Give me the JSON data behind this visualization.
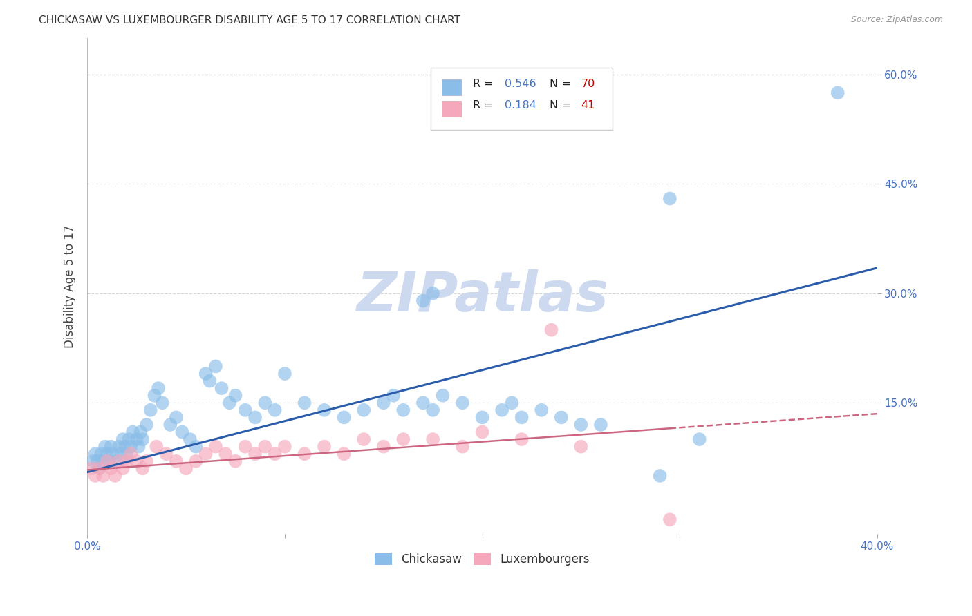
{
  "title": "CHICKASAW VS LUXEMBOURGER DISABILITY AGE 5 TO 17 CORRELATION CHART",
  "source": "Source: ZipAtlas.com",
  "ylabel": "Disability Age 5 to 17",
  "xlim": [
    0.0,
    0.4
  ],
  "ylim": [
    -0.03,
    0.65
  ],
  "xticks": [
    0.0,
    0.1,
    0.2,
    0.3,
    0.4
  ],
  "xticklabels": [
    "0.0%",
    "",
    "",
    "",
    "40.0%"
  ],
  "yticks": [
    0.15,
    0.3,
    0.45,
    0.6
  ],
  "yticklabels": [
    "15.0%",
    "30.0%",
    "45.0%",
    "60.0%"
  ],
  "chickasaw_color": "#8abde8",
  "luxembourger_color": "#f5a8bb",
  "trend_chickasaw_color": "#2a5caa",
  "trend_luxembourger_color": "#cc6680",
  "watermark_color": "#ccd9ee",
  "r_value_color": "#4472c4",
  "n_value_color": "#cc0000",
  "background_color": "#ffffff",
  "grid_color": "#cccccc",
  "legend_box_color": "#f0f0f0",
  "legend_box_edge": "#cccccc",
  "tick_color": "#4472c4",
  "title_color": "#333333",
  "source_color": "#999999",
  "ylabel_color": "#444444",
  "chickasaw_x": [
    0.003,
    0.004,
    0.005,
    0.006,
    0.007,
    0.008,
    0.009,
    0.01,
    0.011,
    0.012,
    0.013,
    0.015,
    0.016,
    0.017,
    0.018,
    0.019,
    0.02,
    0.021,
    0.022,
    0.023,
    0.025,
    0.026,
    0.027,
    0.028,
    0.03,
    0.032,
    0.034,
    0.036,
    0.038,
    0.042,
    0.045,
    0.048,
    0.052,
    0.055,
    0.06,
    0.062,
    0.065,
    0.068,
    0.072,
    0.075,
    0.08,
    0.085,
    0.09,
    0.095,
    0.1,
    0.11,
    0.12,
    0.13,
    0.14,
    0.15,
    0.155,
    0.16,
    0.17,
    0.175,
    0.18,
    0.19,
    0.2,
    0.21,
    0.215,
    0.22,
    0.23,
    0.24,
    0.25,
    0.26,
    0.29,
    0.31,
    0.17,
    0.175,
    0.38,
    0.295
  ],
  "chickasaw_y": [
    0.07,
    0.08,
    0.07,
    0.06,
    0.08,
    0.07,
    0.09,
    0.08,
    0.07,
    0.09,
    0.08,
    0.07,
    0.09,
    0.08,
    0.1,
    0.09,
    0.08,
    0.1,
    0.09,
    0.11,
    0.1,
    0.09,
    0.11,
    0.1,
    0.12,
    0.14,
    0.16,
    0.17,
    0.15,
    0.12,
    0.13,
    0.11,
    0.1,
    0.09,
    0.19,
    0.18,
    0.2,
    0.17,
    0.15,
    0.16,
    0.14,
    0.13,
    0.15,
    0.14,
    0.19,
    0.15,
    0.14,
    0.13,
    0.14,
    0.15,
    0.16,
    0.14,
    0.15,
    0.14,
    0.16,
    0.15,
    0.13,
    0.14,
    0.15,
    0.13,
    0.14,
    0.13,
    0.12,
    0.12,
    0.05,
    0.1,
    0.29,
    0.3,
    0.575,
    0.43
  ],
  "luxembourger_x": [
    0.002,
    0.004,
    0.006,
    0.008,
    0.01,
    0.012,
    0.014,
    0.016,
    0.018,
    0.02,
    0.022,
    0.025,
    0.028,
    0.03,
    0.035,
    0.04,
    0.045,
    0.05,
    0.055,
    0.06,
    0.065,
    0.07,
    0.075,
    0.08,
    0.085,
    0.09,
    0.095,
    0.1,
    0.11,
    0.12,
    0.13,
    0.14,
    0.15,
    0.16,
    0.175,
    0.19,
    0.2,
    0.22,
    0.235,
    0.25,
    0.295
  ],
  "luxembourger_y": [
    0.06,
    0.05,
    0.06,
    0.05,
    0.07,
    0.06,
    0.05,
    0.07,
    0.06,
    0.07,
    0.08,
    0.07,
    0.06,
    0.07,
    0.09,
    0.08,
    0.07,
    0.06,
    0.07,
    0.08,
    0.09,
    0.08,
    0.07,
    0.09,
    0.08,
    0.09,
    0.08,
    0.09,
    0.08,
    0.09,
    0.08,
    0.1,
    0.09,
    0.1,
    0.1,
    0.09,
    0.11,
    0.1,
    0.25,
    0.09,
    -0.01
  ],
  "trend_chick_x0": 0.0,
  "trend_chick_y0": 0.055,
  "trend_chick_x1": 0.4,
  "trend_chick_y1": 0.335,
  "trend_lux_x0": 0.0,
  "trend_lux_y0": 0.058,
  "trend_lux_x1": 0.295,
  "trend_lux_y1": 0.115,
  "trend_lux_dash_x0": 0.295,
  "trend_lux_dash_y0": 0.115,
  "trend_lux_dash_x1": 0.4,
  "trend_lux_dash_y1": 0.135
}
